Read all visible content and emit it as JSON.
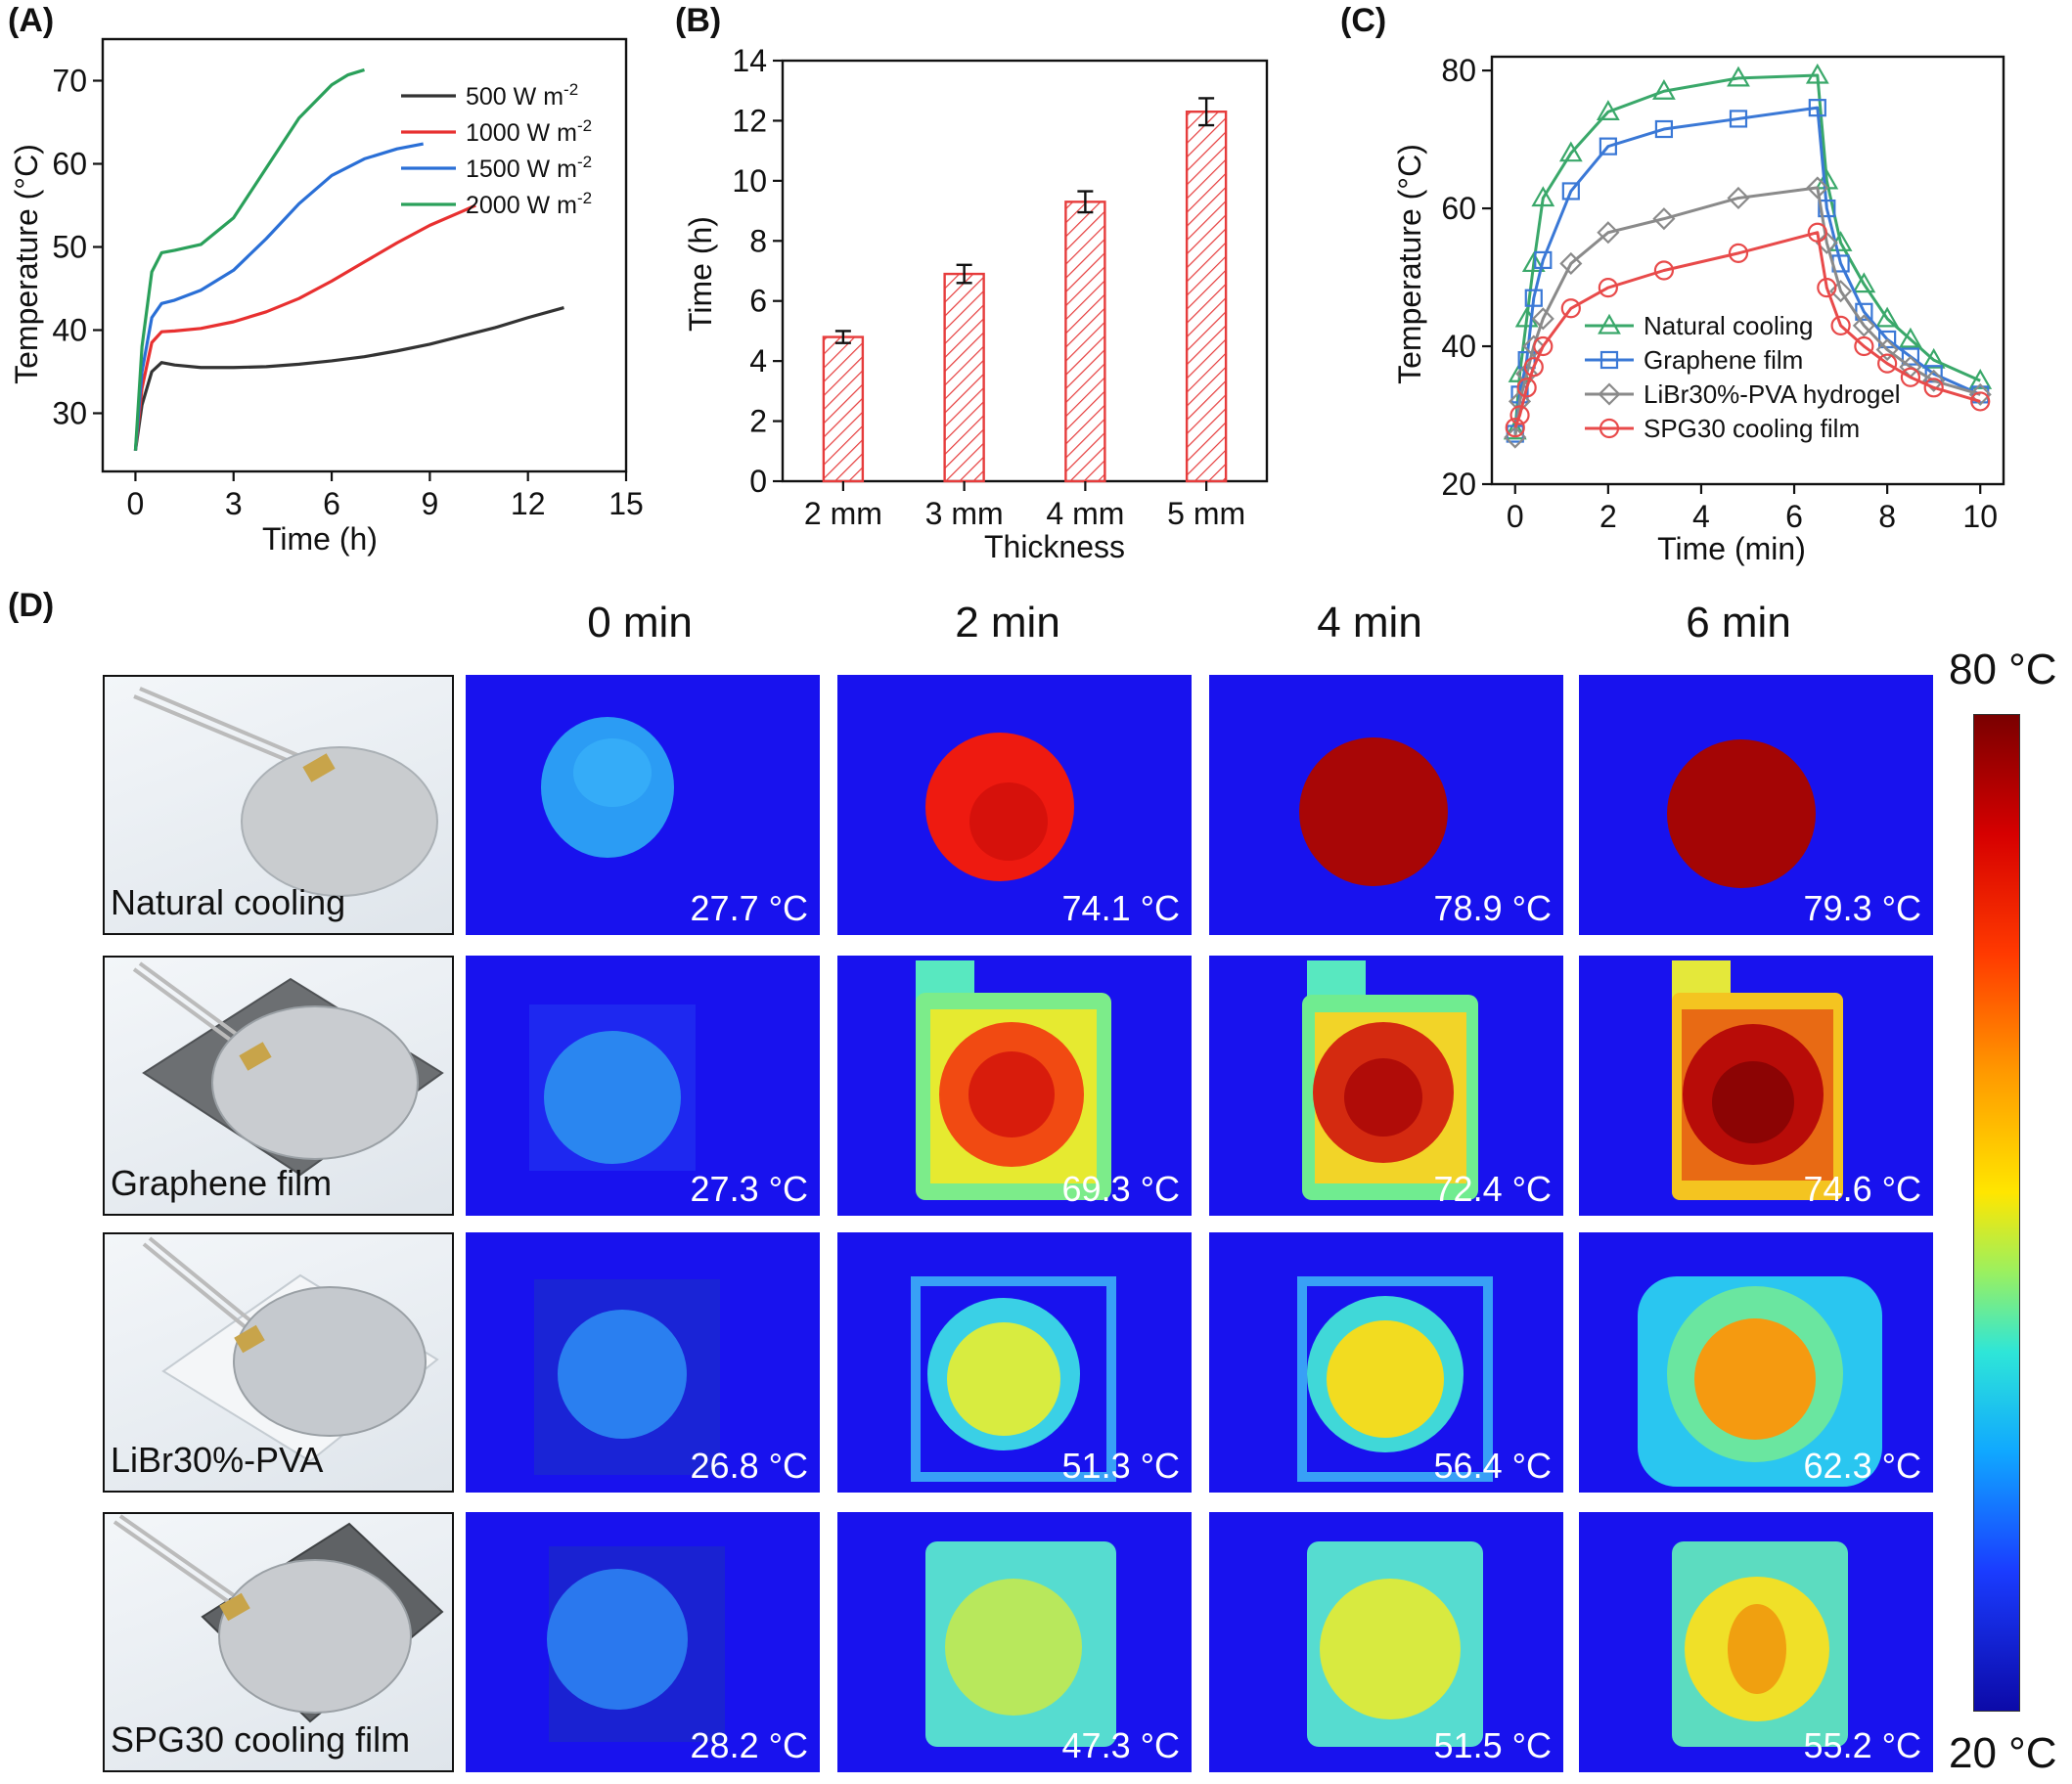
{
  "panels": {
    "A": "(A)",
    "B": "(B)",
    "C": "(C)",
    "D": "(D)"
  },
  "chart_data": [
    {
      "type": "line",
      "xlabel": "Time (h)",
      "ylabel": "Temperature (°C)",
      "xlim": [
        -1,
        15
      ],
      "ylim": [
        23,
        75
      ],
      "xticks": [
        0,
        3,
        6,
        9,
        12,
        15
      ],
      "yticks": [
        30,
        40,
        50,
        60,
        70
      ],
      "legend_position": "top-right",
      "series": [
        {
          "name": "500 W m",
          "sup": "-2",
          "color": "#333333",
          "x": [
            0,
            0.2,
            0.5,
            0.8,
            1.2,
            2,
            3,
            4,
            5,
            6,
            7,
            8,
            9,
            10,
            11,
            12,
            13.1
          ],
          "y": [
            25.5,
            31,
            35,
            36.1,
            35.8,
            35.5,
            35.5,
            35.6,
            35.9,
            36.3,
            36.8,
            37.5,
            38.3,
            39.3,
            40.3,
            41.5,
            42.7
          ]
        },
        {
          "name": "1000 W m",
          "sup": "-2",
          "color": "#e83030",
          "x": [
            0,
            0.2,
            0.5,
            0.8,
            1.2,
            2,
            3,
            4,
            5,
            6,
            7,
            8,
            9,
            10,
            10.4
          ],
          "y": [
            25.5,
            33,
            38.5,
            39.8,
            39.9,
            40.2,
            41,
            42.2,
            43.8,
            45.9,
            48.2,
            50.5,
            52.6,
            54.3,
            55
          ]
        },
        {
          "name": "1500 W m",
          "sup": "-2",
          "color": "#2a6fd6",
          "x": [
            0,
            0.2,
            0.5,
            0.8,
            1.2,
            2,
            3,
            4,
            5,
            6,
            7,
            8,
            8.8
          ],
          "y": [
            25.5,
            35,
            41.5,
            43.2,
            43.6,
            44.8,
            47.2,
            51,
            55.2,
            58.6,
            60.6,
            61.8,
            62.4
          ]
        },
        {
          "name": "2000 W m",
          "sup": "-2",
          "color": "#2aa05a",
          "x": [
            0,
            0.2,
            0.5,
            0.8,
            1.2,
            2,
            3,
            4,
            5,
            6,
            6.5,
            7
          ],
          "y": [
            25.5,
            38,
            47,
            49.3,
            49.6,
            50.3,
            53.5,
            59.5,
            65.5,
            69.5,
            70.7,
            71.3
          ]
        }
      ]
    },
    {
      "type": "bar",
      "xlabel": "Thickness",
      "ylabel": "Time (h)",
      "ylim": [
        0,
        14
      ],
      "yticks": [
        0,
        2,
        4,
        6,
        8,
        10,
        12,
        14
      ],
      "categories": [
        "2 mm",
        "3 mm",
        "4 mm",
        "5 mm"
      ],
      "values": [
        4.8,
        6.9,
        9.3,
        12.3
      ],
      "errors": [
        0.2,
        0.3,
        0.35,
        0.45
      ],
      "color": "#e63c3c"
    },
    {
      "type": "line",
      "xlabel": "Time (min)",
      "ylabel": "Temperature (°C)",
      "xlim": [
        -0.5,
        10.5
      ],
      "ylim": [
        20,
        82
      ],
      "xticks": [
        0,
        2,
        4,
        6,
        8,
        10
      ],
      "yticks": [
        20,
        40,
        60,
        80
      ],
      "legend_position": "bottom-right",
      "series": [
        {
          "name": "Natural cooling",
          "marker": "triangle",
          "color": "#3aa86a",
          "x": [
            0,
            0.1,
            0.25,
            0.4,
            0.6,
            1.2,
            2,
            3.2,
            4.8,
            6.5,
            6.7,
            7,
            7.5,
            8,
            8.5,
            9,
            10
          ],
          "y": [
            27.7,
            36,
            44,
            52,
            61.5,
            68,
            74,
            77,
            78.9,
            79.3,
            64,
            55,
            49,
            44,
            41,
            38,
            35
          ]
        },
        {
          "name": "Graphene film",
          "marker": "square",
          "color": "#3a78d6",
          "x": [
            0,
            0.1,
            0.25,
            0.4,
            0.6,
            1.2,
            2,
            3.2,
            4.8,
            6.5,
            6.7,
            7,
            7.5,
            8,
            8.5,
            9,
            10
          ],
          "y": [
            27.3,
            33,
            38,
            47,
            52.5,
            62.5,
            69,
            71.5,
            73,
            74.6,
            60,
            52,
            45,
            41,
            38.5,
            36,
            33
          ]
        },
        {
          "name": "LiBr30%-PVA hydrogel",
          "marker": "diamond",
          "color": "#8a8a8a",
          "x": [
            0,
            0.1,
            0.25,
            0.4,
            0.6,
            1.2,
            2,
            3.2,
            4.8,
            6.5,
            6.7,
            7,
            7.5,
            8,
            8.5,
            9,
            10
          ],
          "y": [
            26.8,
            32,
            36,
            40,
            44,
            52,
            56.5,
            58.5,
            61.5,
            63,
            55,
            48,
            43,
            39.5,
            37,
            35,
            33
          ]
        },
        {
          "name": "SPG30 cooling film",
          "marker": "circle",
          "color": "#e84a4a",
          "x": [
            0,
            0.1,
            0.25,
            0.4,
            0.6,
            1.2,
            2,
            3.2,
            4.8,
            6.5,
            6.7,
            7,
            7.5,
            8,
            8.5,
            9,
            10
          ],
          "y": [
            28.2,
            30,
            34,
            37,
            40,
            45.5,
            48.5,
            51,
            53.5,
            56.5,
            48.5,
            43,
            40,
            37.5,
            35.5,
            34,
            32
          ]
        }
      ]
    }
  ],
  "grid": {
    "time_headers": [
      "0 min",
      "2 min",
      "4 min",
      "6 min"
    ],
    "rows": [
      {
        "label": "Natural cooling",
        "temps": [
          "27.7 °C",
          "74.1 °C",
          "78.9 °C",
          "79.3 °C"
        ]
      },
      {
        "label": "Graphene film",
        "temps": [
          "27.3 °C",
          "69.3 °C",
          "72.4 °C",
          "74.6 °C"
        ]
      },
      {
        "label": "LiBr30%-PVA",
        "temps": [
          "26.8 °C",
          "51.3 °C",
          "56.4 °C",
          "62.3 °C"
        ]
      },
      {
        "label": "SPG30 cooling film",
        "temps": [
          "28.2 °C",
          "47.3 °C",
          "51.5 °C",
          "55.2 °C"
        ]
      }
    ]
  },
  "colorbar": {
    "max_label": "80 °C",
    "min_label": "20 °C"
  }
}
